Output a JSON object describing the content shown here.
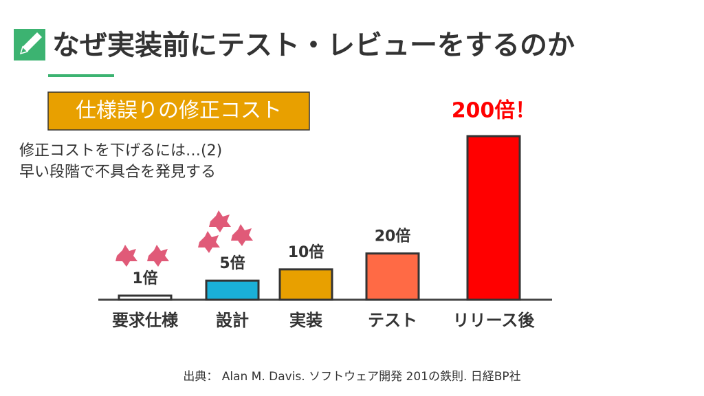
{
  "title": "なぜ実装前にテスト・レビューをするのか",
  "chart_data": {
    "type": "bar",
    "title": "仕様誤りの修正コスト",
    "annotations": [
      "修正コストを下げるには…(2)",
      "早い段階で不具合を発見する"
    ],
    "categories": [
      "要求仕様",
      "設計",
      "実装",
      "テスト",
      "リリース後"
    ],
    "values": [
      1,
      5,
      10,
      20,
      200
    ],
    "value_labels": [
      "1倍",
      "5倍",
      "10倍",
      "20倍",
      "200倍！"
    ],
    "colors": [
      "#ffffff",
      "#1ab0d8",
      "#e8a000",
      "#ff6a45",
      "#ff0000"
    ]
  },
  "source": "出典： Alan M. Davis. ソフトウェア開発 201の鉄則. 日経BP社"
}
